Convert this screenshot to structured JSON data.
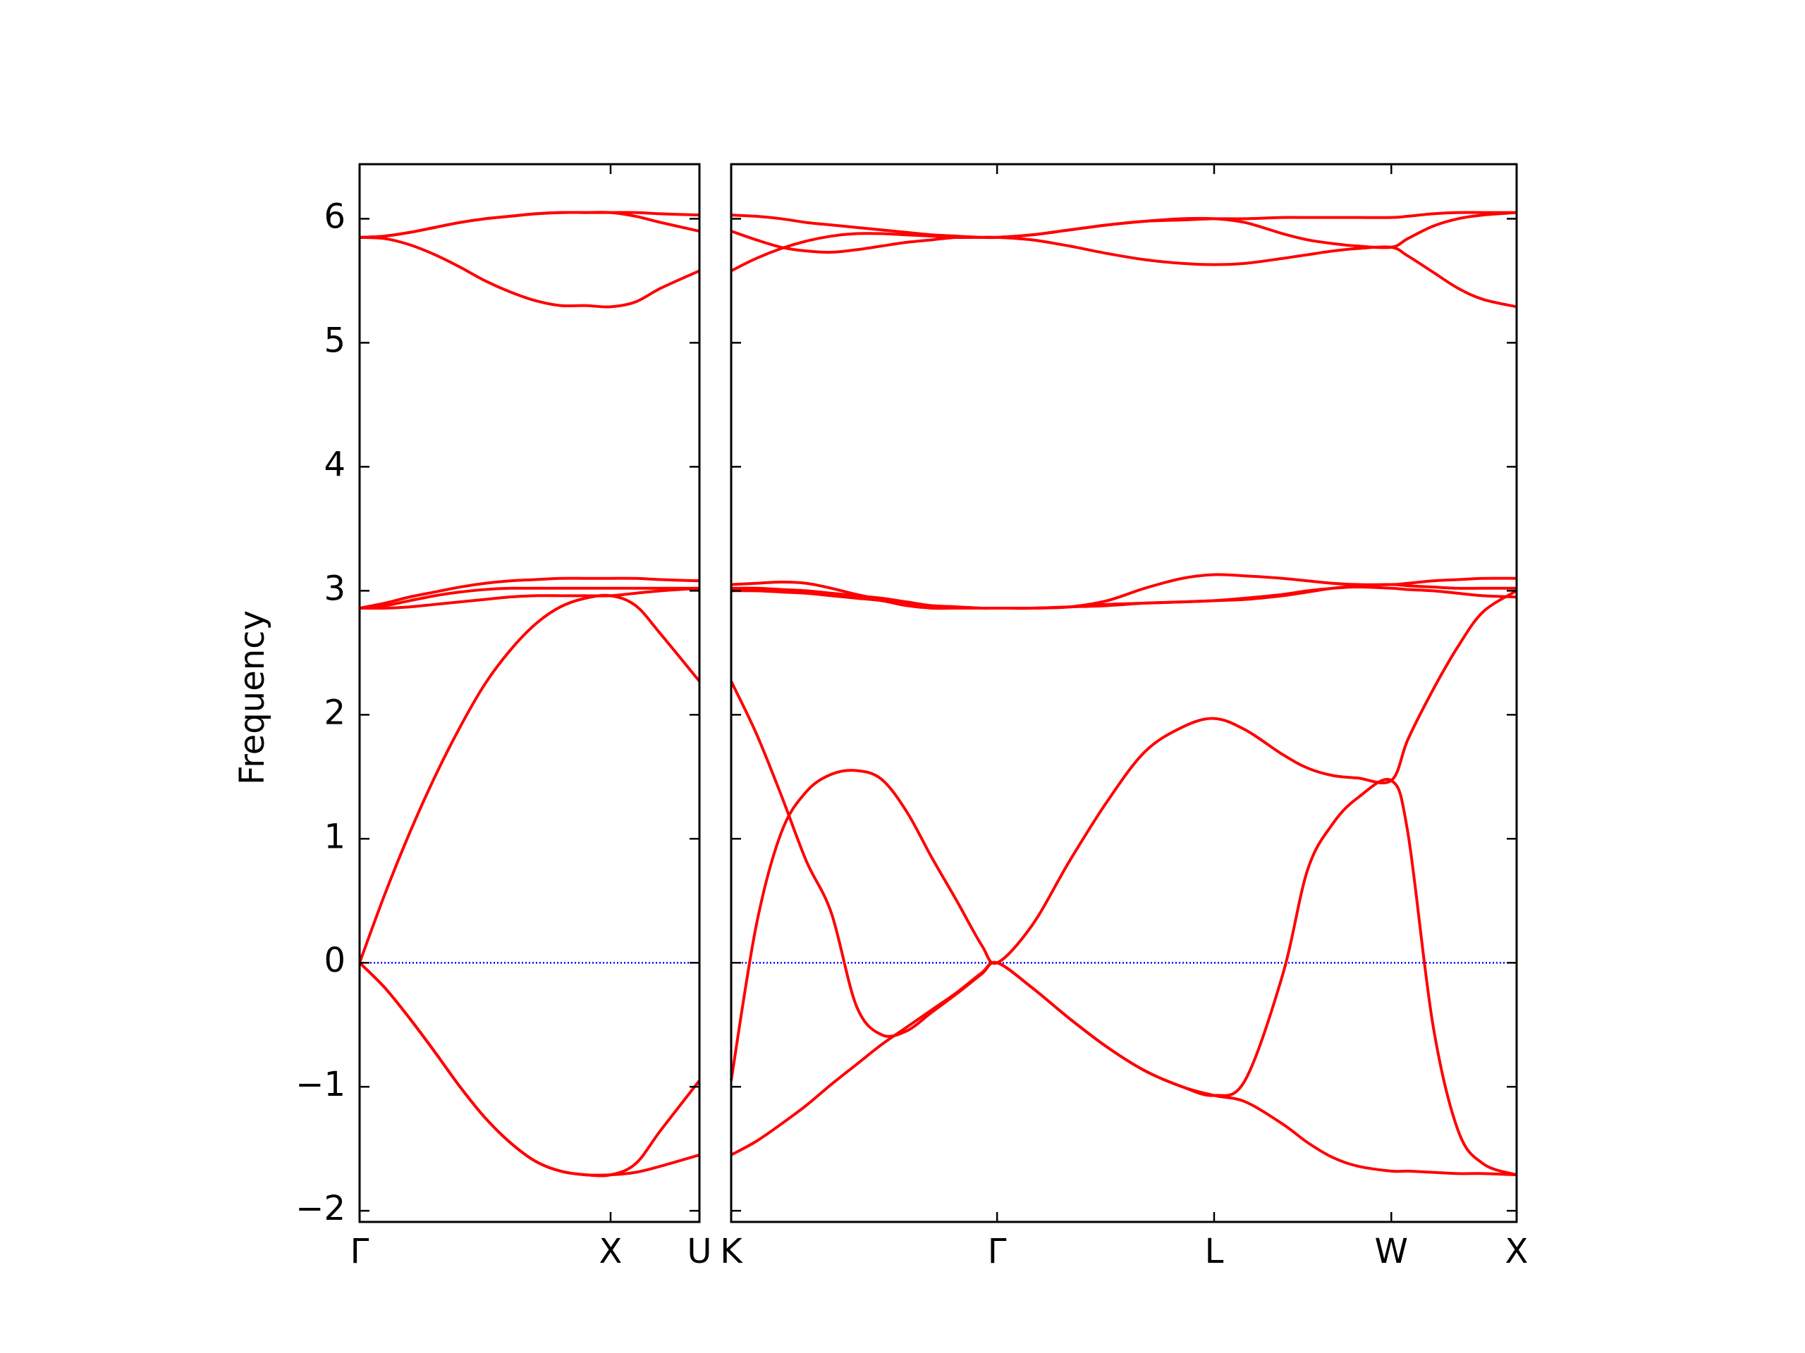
{
  "chart_data": [
    {
      "type": "line",
      "ylabel": "Frequency",
      "ylim": [
        -2.09,
        6.44
      ],
      "xlim": [
        0,
        1.354
      ],
      "yticks": [
        {
          "value": -2,
          "label": "−2"
        },
        {
          "value": -1,
          "label": "−1"
        },
        0,
        1,
        2,
        3,
        4,
        5,
        6
      ],
      "ytick_labels": true,
      "xticks": [
        {
          "value": 0,
          "label": "Γ"
        },
        {
          "value": 1,
          "label": "X"
        },
        {
          "value": 1.354,
          "label": "U"
        }
      ],
      "zero_line": {
        "y": 0,
        "color": "#0000ff"
      },
      "x": [
        0,
        0.1,
        0.2,
        0.3,
        0.4,
        0.5,
        0.6,
        0.7,
        0.8,
        0.9,
        1.0,
        1.1,
        1.2,
        1.354
      ],
      "series": [
        {
          "color": "#ff0000",
          "values": [
            0,
            -0.2,
            -0.45,
            -0.72,
            -1.0,
            -1.25,
            -1.45,
            -1.6,
            -1.68,
            -1.71,
            -1.71,
            -1.69,
            -1.64,
            -1.55
          ]
        },
        {
          "color": "#ff0000",
          "values": [
            0,
            -0.2,
            -0.45,
            -0.72,
            -1.0,
            -1.25,
            -1.45,
            -1.6,
            -1.68,
            -1.71,
            -1.71,
            -1.62,
            -1.35,
            -0.95
          ]
        },
        {
          "color": "#ff0000",
          "values": [
            0,
            0.55,
            1.05,
            1.5,
            1.9,
            2.25,
            2.52,
            2.73,
            2.87,
            2.94,
            2.96,
            2.88,
            2.65,
            2.27
          ]
        },
        {
          "color": "#ff0000",
          "values": [
            2.86,
            2.86,
            2.87,
            2.89,
            2.91,
            2.93,
            2.95,
            2.96,
            2.96,
            2.96,
            2.96,
            2.98,
            3.0,
            3.02
          ]
        },
        {
          "color": "#ff0000",
          "values": [
            2.86,
            2.88,
            2.92,
            2.96,
            2.99,
            3.01,
            3.02,
            3.02,
            3.02,
            3.02,
            3.02,
            3.02,
            3.02,
            3.02
          ]
        },
        {
          "color": "#ff0000",
          "values": [
            2.86,
            2.9,
            2.95,
            2.99,
            3.03,
            3.06,
            3.08,
            3.09,
            3.1,
            3.1,
            3.1,
            3.1,
            3.09,
            3.08
          ]
        },
        {
          "color": "#ff0000",
          "values": [
            5.85,
            5.84,
            5.79,
            5.71,
            5.61,
            5.5,
            5.41,
            5.34,
            5.3,
            5.3,
            5.29,
            5.33,
            5.44,
            5.58
          ]
        },
        {
          "color": "#ff0000",
          "values": [
            5.85,
            5.86,
            5.89,
            5.93,
            5.97,
            6.0,
            6.02,
            6.04,
            6.05,
            6.05,
            6.05,
            6.05,
            6.04,
            6.03
          ]
        },
        {
          "color": "#ff0000",
          "values": [
            5.85,
            5.86,
            5.89,
            5.93,
            5.97,
            6.0,
            6.02,
            6.04,
            6.05,
            6.05,
            6.05,
            6.02,
            5.97,
            5.9
          ]
        }
      ]
    },
    {
      "type": "line",
      "ylim": [
        -2.09,
        6.44
      ],
      "xlim": [
        0,
        3.134
      ],
      "yticks": [
        -2,
        -1,
        0,
        1,
        2,
        3,
        4,
        5,
        6
      ],
      "ytick_labels": false,
      "xticks": [
        {
          "value": 0,
          "label": "K"
        },
        {
          "value": 1.061,
          "label": "Γ"
        },
        {
          "value": 1.927,
          "label": "L"
        },
        {
          "value": 2.634,
          "label": "W"
        },
        {
          "value": 3.134,
          "label": "X"
        }
      ],
      "zero_line": {
        "y": 0,
        "color": "#0000ff"
      },
      "x": [
        0,
        0.1,
        0.2,
        0.3,
        0.4,
        0.5,
        0.6,
        0.7,
        0.8,
        0.9,
        1.0,
        1.061,
        1.2,
        1.35,
        1.5,
        1.65,
        1.8,
        1.927,
        2.05,
        2.2,
        2.3,
        2.4,
        2.5,
        2.634,
        2.7,
        2.8,
        2.9,
        3.0,
        3.134
      ],
      "series": [
        {
          "color": "#ff0000",
          "values": [
            -1.55,
            -1.44,
            -1.3,
            -1.15,
            -0.98,
            -0.82,
            -0.66,
            -0.52,
            -0.38,
            -0.24,
            -0.08,
            0,
            -0.2,
            -0.45,
            -0.68,
            -0.87,
            -1.0,
            -1.07,
            -1.12,
            -1.3,
            -1.45,
            -1.57,
            -1.64,
            -1.68,
            -1.68,
            -1.69,
            -1.7,
            -1.7,
            -1.71
          ]
        },
        {
          "color": "#ff0000",
          "values": [
            -0.95,
            0.3,
            1.05,
            1.38,
            1.52,
            1.55,
            1.48,
            1.22,
            0.85,
            0.5,
            0.14,
            0,
            0.3,
            0.82,
            1.3,
            1.7,
            1.9,
            1.97,
            1.88,
            1.68,
            1.57,
            1.51,
            1.49,
            1.47,
            1.8,
            2.2,
            2.55,
            2.83,
            3.0
          ]
        },
        {
          "color": "#ff0000",
          "values": [
            2.27,
            1.85,
            1.35,
            0.82,
            0.4,
            -0.35,
            -0.58,
            -0.55,
            -0.4,
            -0.25,
            -0.09,
            0,
            -0.2,
            -0.45,
            -0.68,
            -0.87,
            -1.0,
            -1.07,
            -0.95,
            -0.1,
            0.75,
            1.12,
            1.33,
            1.47,
            1.05,
            -0.5,
            -1.35,
            -1.62,
            -1.71
          ]
        },
        {
          "color": "#ff0000",
          "values": [
            3.05,
            3.06,
            3.07,
            3.06,
            3.02,
            2.97,
            2.93,
            2.9,
            2.88,
            2.87,
            2.86,
            2.86,
            2.86,
            2.87,
            2.92,
            3.02,
            3.1,
            3.13,
            3.12,
            3.1,
            3.08,
            3.06,
            3.05,
            3.05,
            3.06,
            3.08,
            3.09,
            3.1,
            3.1
          ]
        },
        {
          "color": "#ff0000",
          "values": [
            3.02,
            3.02,
            3.01,
            3.0,
            2.98,
            2.96,
            2.94,
            2.91,
            2.88,
            2.87,
            2.86,
            2.86,
            2.86,
            2.87,
            2.89,
            2.9,
            2.91,
            2.92,
            2.93,
            2.96,
            2.99,
            3.02,
            3.04,
            3.05,
            3.04,
            3.03,
            3.02,
            3.02,
            3.02
          ]
        },
        {
          "color": "#ff0000",
          "values": [
            3.0,
            3.0,
            2.99,
            2.98,
            2.96,
            2.94,
            2.92,
            2.88,
            2.86,
            2.86,
            2.86,
            2.86,
            2.86,
            2.87,
            2.88,
            2.9,
            2.91,
            2.92,
            2.94,
            2.97,
            3.0,
            3.02,
            3.03,
            3.02,
            3.01,
            3.0,
            2.98,
            2.96,
            2.95
          ]
        },
        {
          "color": "#ff0000",
          "values": [
            5.58,
            5.68,
            5.76,
            5.82,
            5.86,
            5.88,
            5.88,
            5.87,
            5.86,
            5.85,
            5.85,
            5.85,
            5.83,
            5.78,
            5.72,
            5.67,
            5.64,
            5.63,
            5.64,
            5.68,
            5.71,
            5.74,
            5.76,
            5.77,
            5.7,
            5.57,
            5.44,
            5.35,
            5.29
          ]
        },
        {
          "color": "#ff0000",
          "values": [
            5.9,
            5.83,
            5.77,
            5.74,
            5.73,
            5.75,
            5.78,
            5.81,
            5.83,
            5.85,
            5.85,
            5.85,
            5.87,
            5.91,
            5.95,
            5.98,
            6.0,
            6.0,
            5.97,
            5.88,
            5.83,
            5.8,
            5.78,
            5.77,
            5.84,
            5.94,
            6.0,
            6.03,
            6.05
          ]
        },
        {
          "color": "#ff0000",
          "values": [
            6.03,
            6.02,
            6.0,
            5.97,
            5.95,
            5.93,
            5.91,
            5.89,
            5.87,
            5.86,
            5.85,
            5.85,
            5.87,
            5.91,
            5.95,
            5.98,
            5.99,
            6.0,
            6.0,
            6.01,
            6.01,
            6.01,
            6.01,
            6.01,
            6.02,
            6.04,
            6.05,
            6.05,
            6.05
          ]
        }
      ]
    }
  ]
}
